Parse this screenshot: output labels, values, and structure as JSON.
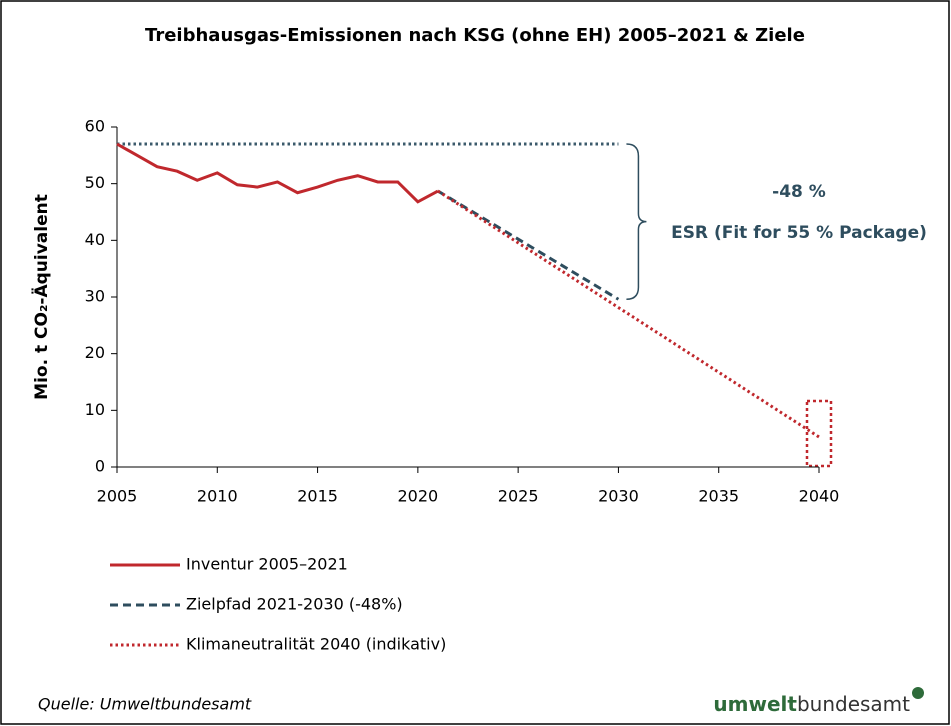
{
  "chart_data": {
    "type": "line",
    "title": "Treibhausgas-Emissionen nach KSG (ohne EH) 2005–2021 & Ziele",
    "y_label": "Mio. t CO₂-Äquivalent",
    "xlim": [
      2005,
      2040
    ],
    "xticks": [
      2005,
      2010,
      2015,
      2020,
      2025,
      2030,
      2035,
      2040
    ],
    "ylim": [
      0,
      60
    ],
    "yticks": [
      0,
      10,
      20,
      30,
      40,
      50,
      60
    ],
    "series": [
      {
        "name": "Inventur 2005–2021",
        "color": "#c0282d",
        "style": "solid",
        "x": [
          2005,
          2006,
          2007,
          2008,
          2009,
          2010,
          2011,
          2012,
          2013,
          2014,
          2015,
          2016,
          2017,
          2018,
          2019,
          2020,
          2021
        ],
        "values": [
          57,
          55,
          53,
          52.2,
          50.6,
          51.9,
          49.8,
          49.4,
          50.3,
          48.4,
          49.4,
          50.6,
          51.4,
          50.3,
          50.3,
          46.8,
          48.7
        ]
      },
      {
        "name": "Zielpfad 2021-2030 (-48%)",
        "color": "#2e4d5e",
        "style": "dashed",
        "x": [
          2021,
          2030
        ],
        "values": [
          48.7,
          29.6
        ]
      },
      {
        "name": "Klimaneutralität 2040 (indikativ)",
        "color": "#c0282d",
        "style": "dotted",
        "x": [
          2021,
          2040
        ],
        "values": [
          48.7,
          5.3
        ]
      }
    ],
    "reference_line": {
      "color": "#3b5a6b",
      "x": [
        2005,
        2030
      ],
      "values": [
        57,
        57
      ]
    },
    "annotations": {
      "reduction": "-48 %",
      "target": "ESR  (Fit for 55 % Package)"
    },
    "source": "Quelle: Umweltbundesamt",
    "logo": {
      "bold": "umwelt",
      "rest": "bundesamt"
    }
  }
}
